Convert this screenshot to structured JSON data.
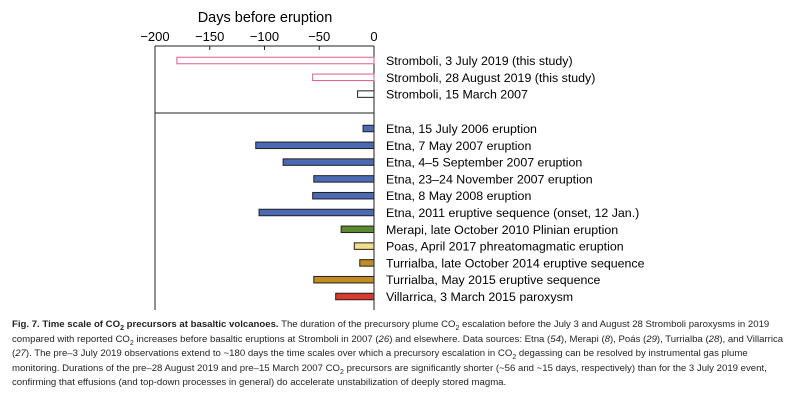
{
  "chart_data": {
    "type": "bar",
    "orientation": "horizontal",
    "title": "",
    "xlabel": "Days before eruption",
    "ylabel": "",
    "xlim": [
      -200,
      0
    ],
    "xticks": [
      -200,
      -150,
      -100,
      -50,
      0
    ],
    "xtick_labels": [
      "−200",
      "−150",
      "−100",
      "−50",
      "0"
    ],
    "grid": false,
    "legend": "none",
    "groups": [
      {
        "bars": [
          {
            "label": "Stromboli, 3 July 2019 (this study)",
            "value": -180,
            "color": "#ffffff",
            "edge": "#e35a8e"
          },
          {
            "label": "Stromboli, 28 August 2019 (this study)",
            "value": -56,
            "color": "#ffffff",
            "edge": "#e35a8e"
          },
          {
            "label": "Stromboli, 15 March 2007",
            "value": -15,
            "color": "#ffffff",
            "edge": "#231f20"
          }
        ]
      },
      {
        "bars": [
          {
            "label": "Etna, 15 July 2006 eruption",
            "value": -10,
            "color": "#4a6ab4",
            "edge": "#231f20"
          },
          {
            "label": "Etna, 7 May 2007 eruption",
            "value": -108,
            "color": "#4a6ab4",
            "edge": "#231f20"
          },
          {
            "label": "Etna, 4–5 September 2007 eruption",
            "value": -83,
            "color": "#4a6ab4",
            "edge": "#231f20"
          },
          {
            "label": "Etna, 23–24 November 2007 eruption",
            "value": -55,
            "color": "#4a6ab4",
            "edge": "#231f20"
          },
          {
            "label": "Etna, 8 May 2008 eruption",
            "value": -56,
            "color": "#4a6ab4",
            "edge": "#231f20"
          },
          {
            "label": "Etna, 2011 eruptive sequence (onset, 12 Jan.)",
            "value": -105,
            "color": "#4a6ab4",
            "edge": "#231f20"
          },
          {
            "label": "Merapi, late October 2010 Plinian eruption",
            "value": -30,
            "color": "#5b8a2f",
            "edge": "#231f20"
          },
          {
            "label": "Poas, April 2017 phreatomagmatic eruption",
            "value": -18,
            "color": "#f3dc8a",
            "edge": "#231f20"
          },
          {
            "label": "Turrialba, late October 2014 eruptive sequence",
            "value": -13,
            "color": "#c08d22",
            "edge": "#231f20"
          },
          {
            "label": "Turrialba, May 2015 eruptive sequence",
            "value": -55,
            "color": "#c08d22",
            "edge": "#231f20"
          },
          {
            "label": "Villarrica, 3 March 2015 paroxysm",
            "value": -35,
            "color": "#d83a2e",
            "edge": "#231f20"
          }
        ]
      }
    ]
  },
  "caption": {
    "fig_label": "Fig. 7.",
    "title_before_sub": "Time scale of CO",
    "title_sub": "2",
    "title_after_sub": " precursors at basaltic volcanoes.",
    "body": [
      {
        "t": " The duration of the precursory plume CO"
      },
      {
        "sub": "2"
      },
      {
        "t": " escalation before the July 3 and August 28 Stromboli paroxysms in 2019 compared with reported CO"
      },
      {
        "sub": "2"
      },
      {
        "t": " increases before basaltic eruptions at Stromboli in 2007 ("
      },
      {
        "i": "26"
      },
      {
        "t": ") and elsewhere. Data sources: Etna ("
      },
      {
        "i": "54"
      },
      {
        "t": "), Merapi ("
      },
      {
        "i": "8"
      },
      {
        "t": "), Poás ("
      },
      {
        "i": "29"
      },
      {
        "t": "), Turrialba ("
      },
      {
        "i": "28"
      },
      {
        "t": "), and Villarrica ("
      },
      {
        "i": "27"
      },
      {
        "t": "). The pre–3 July 2019 observations extend to ~180 days the time scales over which a precursory escalation in CO"
      },
      {
        "sub": "2"
      },
      {
        "t": " degassing can be resolved by instrumental gas plume monitoring. Durations of the pre–28 August 2019 and pre–15 March 2007 CO"
      },
      {
        "sub": "2"
      },
      {
        "t": " precursors are significantly shorter (~56 and ~15 days, respectively) than for the 3 July 2019 event, confirming that effusions (and top-down processes in general) do accelerate unstabilization of deeply stored magma."
      }
    ]
  }
}
